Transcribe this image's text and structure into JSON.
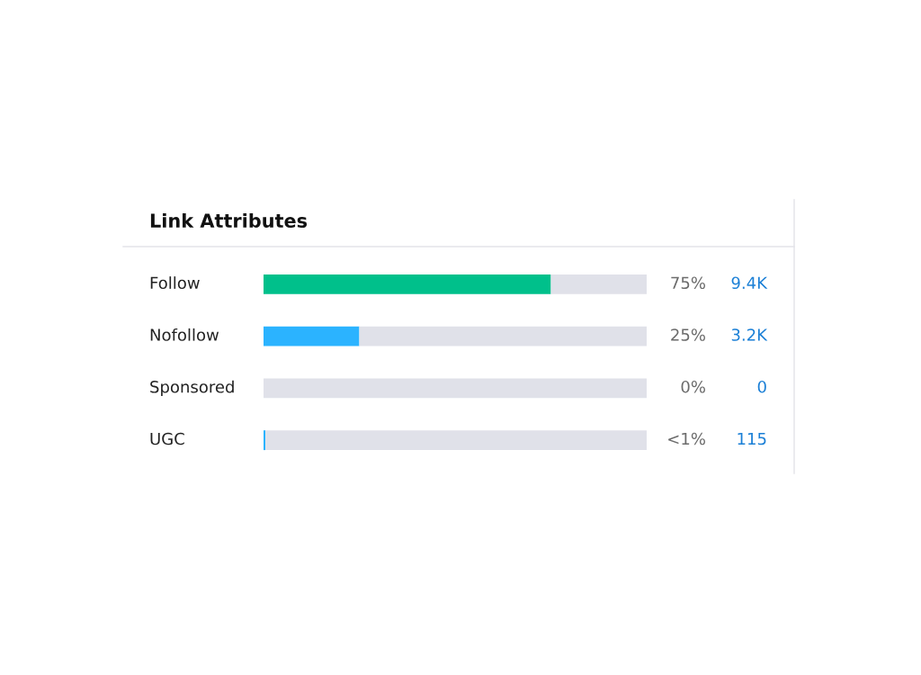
{
  "chart_data": {
    "type": "bar",
    "title": "Link Attributes",
    "orientation": "horizontal",
    "stacked": true,
    "categories": [
      "Follow",
      "Nofollow",
      "Sponsored",
      "UGC"
    ],
    "xlim": [
      0,
      100
    ],
    "series": [
      {
        "colors": [
          "#00c08b",
          "#2bb3ff",
          "#2bb3ff",
          "#2bb3ff"
        ],
        "values": [
          75,
          25,
          0,
          0.5
        ],
        "value_labels": [
          "75%",
          "25%",
          "0%",
          "<1%"
        ]
      },
      {
        "color": "#e0e1e9",
        "values": [
          25,
          75,
          100,
          99.5
        ]
      }
    ],
    "annotations": [
      "9.4K",
      "3.2K",
      "0",
      "115"
    ],
    "tick_labels": false
  }
}
